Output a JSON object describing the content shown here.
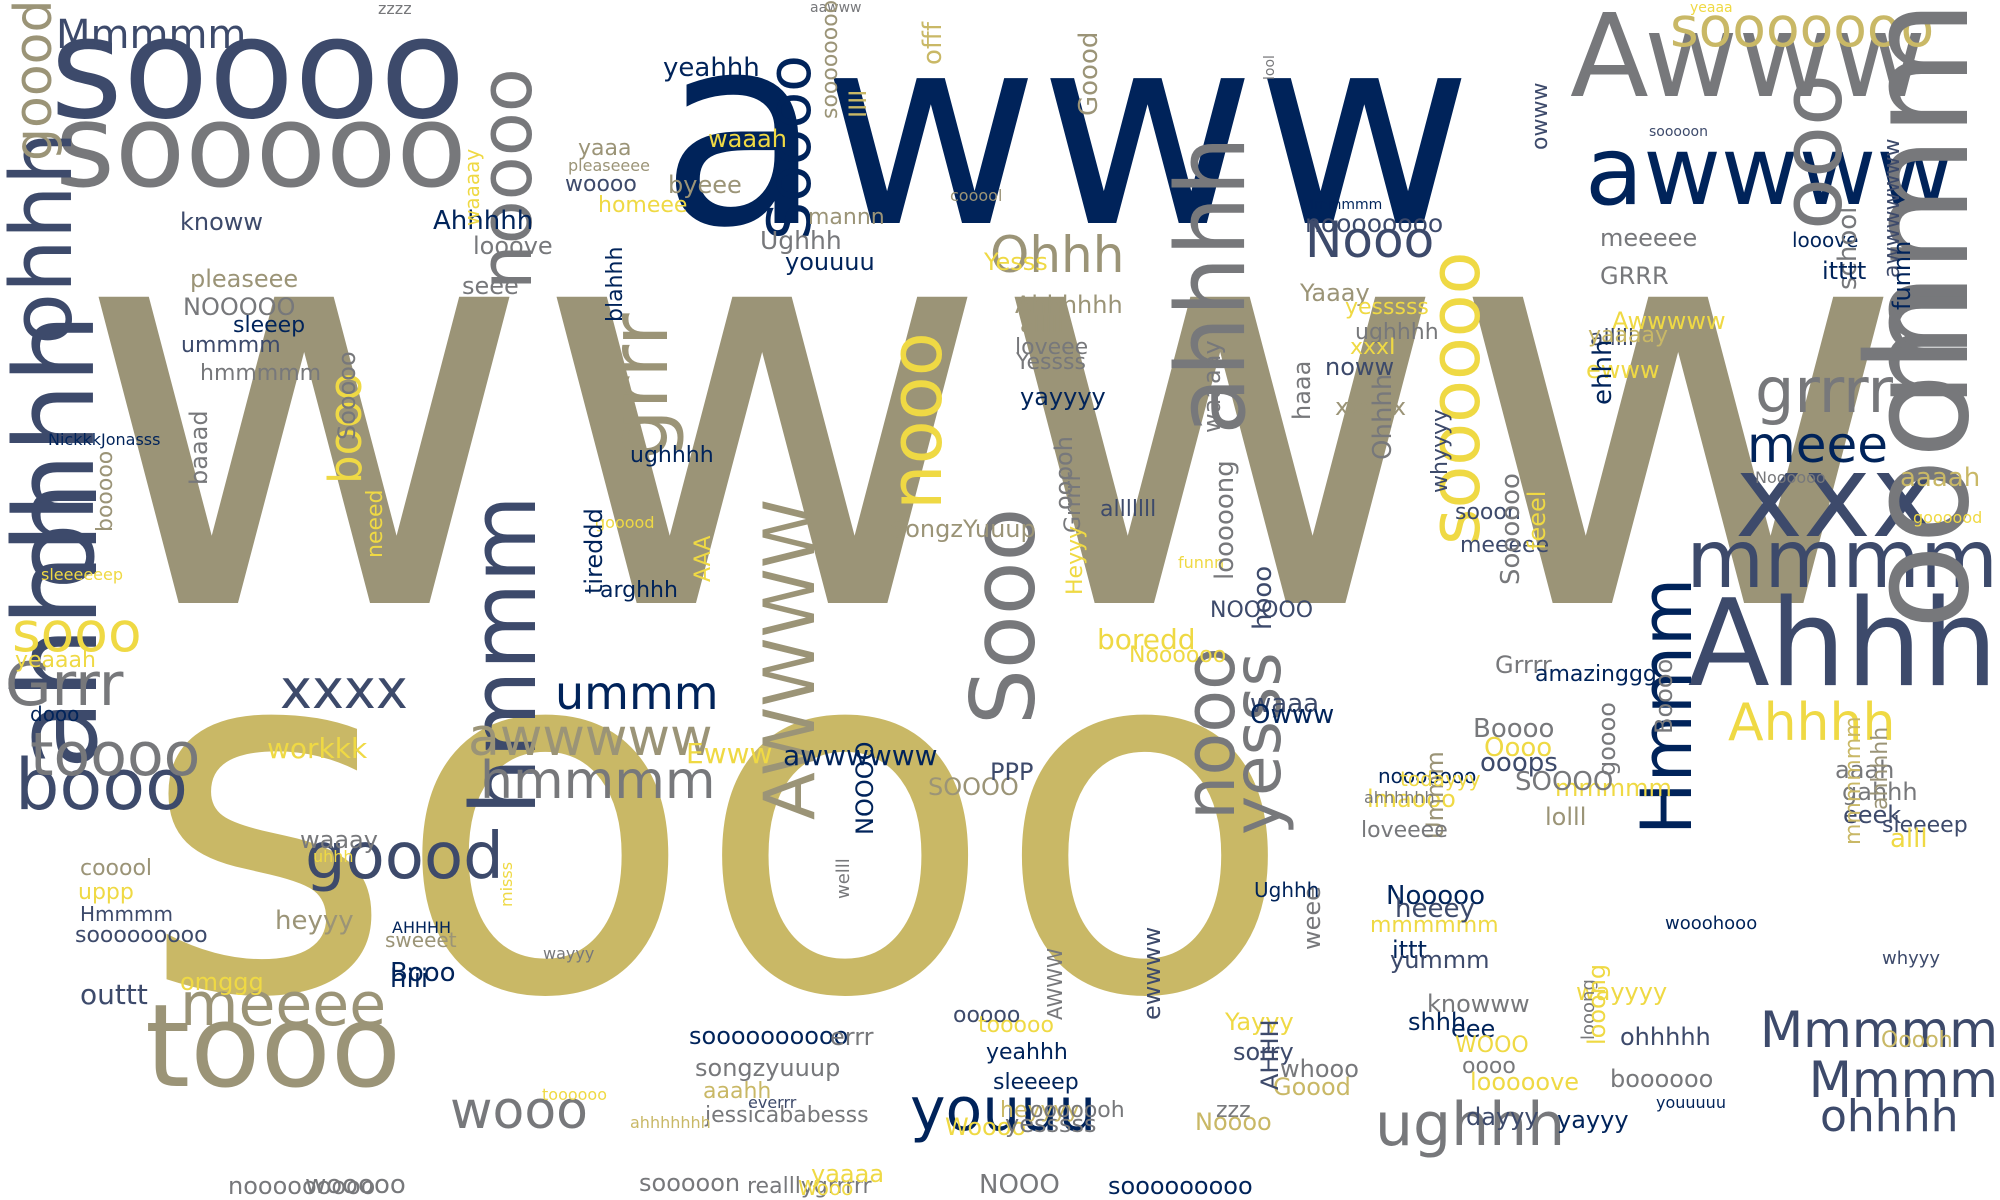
{
  "palette": {
    "navy": "#00235a",
    "slate": "#3d4a6b",
    "grey": "#77787b",
    "khaki": "#9b9477",
    "gold": "#c9b866",
    "yellow": "#efd944"
  },
  "words": [
    {
      "text": "wwww",
      "color": "khaki"
    },
    {
      "text": "sooo",
      "color": "gold"
    },
    {
      "text": "awww",
      "color": "navy"
    },
    {
      "text": "soooo",
      "color": "slate"
    },
    {
      "text": "sooooo",
      "color": "grey"
    },
    {
      "text": "Awww",
      "color": "grey"
    },
    {
      "text": "awwww",
      "color": "navy"
    },
    {
      "text": "sooooooo",
      "color": "gold"
    },
    {
      "text": "xxx",
      "color": "slate"
    },
    {
      "text": "Ahhh",
      "color": "slate"
    },
    {
      "text": "mmmm",
      "color": "slate"
    },
    {
      "text": "mmm",
      "color": "grey"
    },
    {
      "text": "oooh",
      "color": "grey"
    },
    {
      "text": "ooo",
      "color": "grey"
    },
    {
      "text": "Mmmmm",
      "color": "slate"
    },
    {
      "text": "ohhh",
      "color": "slate"
    },
    {
      "text": "ahhh",
      "color": "slate"
    },
    {
      "text": "goood",
      "color": "khaki"
    },
    {
      "text": "ohhh",
      "color": "slate"
    },
    {
      "text": "tooo",
      "color": "khaki"
    },
    {
      "text": "booo",
      "color": "slate"
    },
    {
      "text": "toooo",
      "color": "grey"
    },
    {
      "text": "Grrr",
      "color": "grey"
    },
    {
      "text": "sooo",
      "color": "yellow"
    },
    {
      "text": "xxxx",
      "color": "slate"
    },
    {
      "text": "goood",
      "color": "slate"
    },
    {
      "text": "hmmm",
      "color": "slate"
    },
    {
      "text": "hmmmm",
      "color": "grey"
    },
    {
      "text": "meeee",
      "color": "khaki"
    },
    {
      "text": "awwwww",
      "color": "khaki"
    },
    {
      "text": "ummm",
      "color": "navy"
    },
    {
      "text": "grrr",
      "color": "khaki"
    },
    {
      "text": "noooo",
      "color": "grey"
    },
    {
      "text": "ahhhh",
      "color": "grey"
    },
    {
      "text": "Soooo",
      "color": "navy"
    },
    {
      "text": "nooo",
      "color": "yellow"
    },
    {
      "text": "booo",
      "color": "yellow"
    },
    {
      "text": "Sooo",
      "color": "grey"
    },
    {
      "text": "Ohhh",
      "color": "khaki"
    },
    {
      "text": "Nooo",
      "color": "slate"
    },
    {
      "text": "soooooo",
      "color": "yellow"
    },
    {
      "text": "meee",
      "color": "navy"
    },
    {
      "text": "grrrr",
      "color": "grey"
    },
    {
      "text": "Ahhhh",
      "color": "yellow"
    },
    {
      "text": "AWWWW",
      "color": "khaki"
    },
    {
      "text": "nooo",
      "color": "grey"
    },
    {
      "text": "yesss",
      "color": "grey"
    },
    {
      "text": "Hmmm",
      "color": "navy"
    },
    {
      "text": "ughhh",
      "color": "grey"
    },
    {
      "text": "youuu",
      "color": "navy"
    },
    {
      "text": "wooo",
      "color": "grey"
    },
    {
      "text": "ohhhh",
      "color": "slate"
    },
    {
      "text": "Mmmm",
      "color": "slate"
    },
    {
      "text": "Mmmmm",
      "color": "slate"
    },
    {
      "text": "zzzz",
      "color": "grey"
    },
    {
      "text": "aawww",
      "color": "grey"
    },
    {
      "text": "yeaaa",
      "color": "yellow"
    },
    {
      "text": "offf",
      "color": "gold"
    },
    {
      "text": "yeahhh",
      "color": "navy"
    },
    {
      "text": "soooooooo",
      "color": "khaki"
    },
    {
      "text": "IIII",
      "color": "gold"
    },
    {
      "text": "lool",
      "color": "grey"
    },
    {
      "text": "sooooon",
      "color": "slate"
    },
    {
      "text": "owww",
      "color": "slate"
    },
    {
      "text": "yaaa",
      "color": "khaki"
    },
    {
      "text": "waaah",
      "color": "yellow"
    },
    {
      "text": "pleaseeee",
      "color": "khaki"
    },
    {
      "text": "byeee",
      "color": "khaki"
    },
    {
      "text": "woooo",
      "color": "slate"
    },
    {
      "text": "homeee",
      "color": "yellow"
    },
    {
      "text": "mannn",
      "color": "khaki"
    },
    {
      "text": "cooool",
      "color": "khaki"
    },
    {
      "text": "Goood",
      "color": "khaki"
    },
    {
      "text": "Mmmmmm",
      "color": "navy"
    },
    {
      "text": "noooooooo",
      "color": "slate"
    },
    {
      "text": "knoww",
      "color": "slate"
    },
    {
      "text": "Ahhhhh",
      "color": "navy"
    },
    {
      "text": "looove",
      "color": "grey"
    },
    {
      "text": "Ughhh",
      "color": "grey"
    },
    {
      "text": "youuuu",
      "color": "navy"
    },
    {
      "text": "Yesss",
      "color": "yellow"
    },
    {
      "text": "pleaseee",
      "color": "khaki"
    },
    {
      "text": "NOOOOO",
      "color": "grey"
    },
    {
      "text": "sleeep",
      "color": "navy"
    },
    {
      "text": "ummmm",
      "color": "slate"
    },
    {
      "text": "hmmmmm",
      "color": "grey"
    },
    {
      "text": "seee",
      "color": "grey"
    },
    {
      "text": "waaaay",
      "color": "yellow"
    },
    {
      "text": "Ahhhhhh",
      "color": "khaki"
    },
    {
      "text": "alllll",
      "color": "khaki"
    },
    {
      "text": "loveee",
      "color": "grey"
    },
    {
      "text": "Yessss",
      "color": "grey"
    },
    {
      "text": "yayyyy",
      "color": "navy"
    },
    {
      "text": "Yaaay",
      "color": "khaki"
    },
    {
      "text": "yesssss",
      "color": "yellow"
    },
    {
      "text": "ughhhh",
      "color": "grey"
    },
    {
      "text": "xxxI",
      "color": "yellow"
    },
    {
      "text": "noww",
      "color": "slate"
    },
    {
      "text": "xxxxx",
      "color": "khaki"
    },
    {
      "text": "haaa",
      "color": "grey"
    },
    {
      "text": "meeeee",
      "color": "grey"
    },
    {
      "text": "looove",
      "color": "navy"
    },
    {
      "text": "school",
      "color": "grey"
    },
    {
      "text": "GRRR",
      "color": "grey"
    },
    {
      "text": "Awwwww",
      "color": "yellow"
    },
    {
      "text": "alllll",
      "color": "slate"
    },
    {
      "text": "yaaaay",
      "color": "gold"
    },
    {
      "text": "ewww",
      "color": "yellow"
    },
    {
      "text": "itttt",
      "color": "navy"
    },
    {
      "text": "awwwwwww",
      "color": "slate"
    },
    {
      "text": "funnn",
      "color": "navy"
    },
    {
      "text": "ehhh",
      "color": "navy"
    },
    {
      "text": "Noooooo",
      "color": "grey"
    },
    {
      "text": "aaaah",
      "color": "gold"
    },
    {
      "text": "goooood",
      "color": "yellow"
    },
    {
      "text": "NickkkJonasss",
      "color": "navy"
    },
    {
      "text": "Sooooo",
      "color": "grey"
    },
    {
      "text": "baaad",
      "color": "grey"
    },
    {
      "text": "blahhh",
      "color": "navy"
    },
    {
      "text": "ughhhh",
      "color": "navy"
    },
    {
      "text": "gooood",
      "color": "yellow"
    },
    {
      "text": "booooo",
      "color": "khaki"
    },
    {
      "text": "neeed",
      "color": "yellow"
    },
    {
      "text": "sleeeeeep",
      "color": "yellow"
    },
    {
      "text": "tireddd",
      "color": "navy"
    },
    {
      "text": "arghhh",
      "color": "navy"
    },
    {
      "text": "AAA",
      "color": "yellow"
    },
    {
      "text": "yeaaah",
      "color": "yellow"
    },
    {
      "text": "dooo",
      "color": "navy"
    },
    {
      "text": "workkk",
      "color": "yellow"
    },
    {
      "text": "Ewww",
      "color": "yellow"
    },
    {
      "text": "awwwwww",
      "color": "navy"
    },
    {
      "text": "SongzYuuup",
      "color": "khaki"
    },
    {
      "text": "ooooh",
      "color": "grey"
    },
    {
      "text": "Grrrrr",
      "color": "grey"
    },
    {
      "text": "Heyyy",
      "color": "yellow"
    },
    {
      "text": "alllllll",
      "color": "slate"
    },
    {
      "text": "whyyyy",
      "color": "slate"
    },
    {
      "text": "waaaay",
      "color": "grey"
    },
    {
      "text": "funnn",
      "color": "yellow"
    },
    {
      "text": "Ohhhh",
      "color": "grey"
    },
    {
      "text": "looooong",
      "color": "grey"
    },
    {
      "text": "NOOOOO",
      "color": "slate"
    },
    {
      "text": "Noooooo",
      "color": "yellow"
    },
    {
      "text": "boredd",
      "color": "yellow"
    },
    {
      "text": "hooo",
      "color": "slate"
    },
    {
      "text": "waaa",
      "color": "slate"
    },
    {
      "text": "Owww",
      "color": "navy"
    },
    {
      "text": "sooon",
      "color": "slate"
    },
    {
      "text": "meeeee",
      "color": "slate"
    },
    {
      "text": "Soooooo",
      "color": "grey"
    },
    {
      "text": "feeel",
      "color": "yellow"
    },
    {
      "text": "Grrrr",
      "color": "grey"
    },
    {
      "text": "amazinggg",
      "color": "navy"
    },
    {
      "text": "Boooo",
      "color": "grey"
    },
    {
      "text": "Oooo",
      "color": "yellow"
    },
    {
      "text": "ooops",
      "color": "slate"
    },
    {
      "text": "mmmmm",
      "color": "yellow"
    },
    {
      "text": "SOOOO",
      "color": "grey"
    },
    {
      "text": "lolll",
      "color": "khaki"
    },
    {
      "text": "Boooo",
      "color": "grey"
    },
    {
      "text": "aaah",
      "color": "grey"
    },
    {
      "text": "gahhh",
      "color": "grey"
    },
    {
      "text": "eeek",
      "color": "slate"
    },
    {
      "text": "SOOOO",
      "color": "khaki"
    },
    {
      "text": "goooo",
      "color": "grey"
    },
    {
      "text": "lmaooo",
      "color": "yellow"
    },
    {
      "text": "Ummm",
      "color": "khaki"
    },
    {
      "text": "PPP",
      "color": "slate"
    },
    {
      "text": "loveeee",
      "color": "grey"
    },
    {
      "text": "nooooooo",
      "color": "navy"
    },
    {
      "text": "todayyy",
      "color": "yellow"
    },
    {
      "text": "ahhhhhh",
      "color": "grey"
    },
    {
      "text": "waaay",
      "color": "grey"
    },
    {
      "text": "cooool",
      "color": "khaki"
    },
    {
      "text": "uppp",
      "color": "yellow"
    },
    {
      "text": "Hmmmm",
      "color": "slate"
    },
    {
      "text": "heyyy",
      "color": "khaki"
    },
    {
      "text": "sooooooooo",
      "color": "slate"
    },
    {
      "text": "omggg",
      "color": "yellow"
    },
    {
      "text": "mmmmmm",
      "color": "yellow"
    },
    {
      "text": "Nooooo",
      "color": "navy"
    },
    {
      "text": "heeey",
      "color": "slate"
    },
    {
      "text": "ittt",
      "color": "navy"
    },
    {
      "text": "yummm",
      "color": "slate"
    },
    {
      "text": "Booo",
      "color": "navy"
    },
    {
      "text": "sweeet",
      "color": "khaki"
    },
    {
      "text": "AHHHH",
      "color": "navy"
    },
    {
      "text": "uhhh",
      "color": "yellow"
    },
    {
      "text": "hiii",
      "color": "navy"
    },
    {
      "text": "outtt",
      "color": "slate"
    },
    {
      "text": "soooooooooo",
      "color": "navy"
    },
    {
      "text": "songzyuuup",
      "color": "grey"
    },
    {
      "text": "jessicababesss",
      "color": "grey"
    },
    {
      "text": "aaahh",
      "color": "gold"
    },
    {
      "text": "everrr",
      "color": "slate"
    },
    {
      "text": "ahhhhhhh",
      "color": "gold"
    },
    {
      "text": "errr",
      "color": "grey"
    },
    {
      "text": "NOOOO",
      "color": "navy"
    },
    {
      "text": "welll",
      "color": "grey"
    },
    {
      "text": "misss",
      "color": "yellow"
    },
    {
      "text": "wayyy",
      "color": "grey"
    },
    {
      "text": "toooooo",
      "color": "yellow"
    },
    {
      "text": "ooooo",
      "color": "slate"
    },
    {
      "text": "tooooo",
      "color": "yellow"
    },
    {
      "text": "yeahhh",
      "color": "navy"
    },
    {
      "text": "sleeeep",
      "color": "navy"
    },
    {
      "text": "Woooo",
      "color": "yellow"
    },
    {
      "text": "yesssss",
      "color": "grey"
    },
    {
      "text": "heyyyy",
      "color": "gold"
    },
    {
      "text": "AWWW",
      "color": "grey"
    },
    {
      "text": "ooooooh",
      "color": "grey"
    },
    {
      "text": "ewwww",
      "color": "slate"
    },
    {
      "text": "Yayyy",
      "color": "yellow"
    },
    {
      "text": "sorry",
      "color": "slate"
    },
    {
      "text": "zzz",
      "color": "grey"
    },
    {
      "text": "Goood",
      "color": "gold"
    },
    {
      "text": "Noooo",
      "color": "gold"
    },
    {
      "text": "AHHH",
      "color": "slate"
    },
    {
      "text": "weee",
      "color": "grey"
    },
    {
      "text": "whooo",
      "color": "grey"
    },
    {
      "text": "Ughhh",
      "color": "navy"
    },
    {
      "text": "shhh",
      "color": "navy"
    },
    {
      "text": "knowww",
      "color": "grey"
    },
    {
      "text": "eee",
      "color": "navy"
    },
    {
      "text": "oooo",
      "color": "grey"
    },
    {
      "text": "WOOO",
      "color": "yellow"
    },
    {
      "text": "looooove",
      "color": "yellow"
    },
    {
      "text": "dayyy",
      "color": "slate"
    },
    {
      "text": "yayyy",
      "color": "navy"
    },
    {
      "text": "wayyyy",
      "color": "yellow"
    },
    {
      "text": "looong",
      "color": "grey"
    },
    {
      "text": "ohhhhh",
      "color": "slate"
    },
    {
      "text": "looong",
      "color": "yellow"
    },
    {
      "text": "boooooo",
      "color": "grey"
    },
    {
      "text": "wooohooo",
      "color": "navy"
    },
    {
      "text": "mmmmmm",
      "color": "gold"
    },
    {
      "text": "ahhhhh",
      "color": "khaki"
    },
    {
      "text": "sleeeep",
      "color": "slate"
    },
    {
      "text": "alll",
      "color": "yellow"
    },
    {
      "text": "Ooooh",
      "color": "gold"
    },
    {
      "text": "whyyy",
      "color": "slate"
    },
    {
      "text": "youuuuu",
      "color": "navy"
    },
    {
      "text": "nooooooooo",
      "color": "grey"
    },
    {
      "text": "wooooo",
      "color": "grey"
    },
    {
      "text": "realllygrrrrr",
      "color": "grey"
    },
    {
      "text": "sooooon",
      "color": "grey"
    },
    {
      "text": "yaaaa",
      "color": "yellow"
    },
    {
      "text": "Wooo",
      "color": "yellow"
    },
    {
      "text": "NOOO",
      "color": "grey"
    },
    {
      "text": "sooooooooo",
      "color": "navy"
    }
  ]
}
